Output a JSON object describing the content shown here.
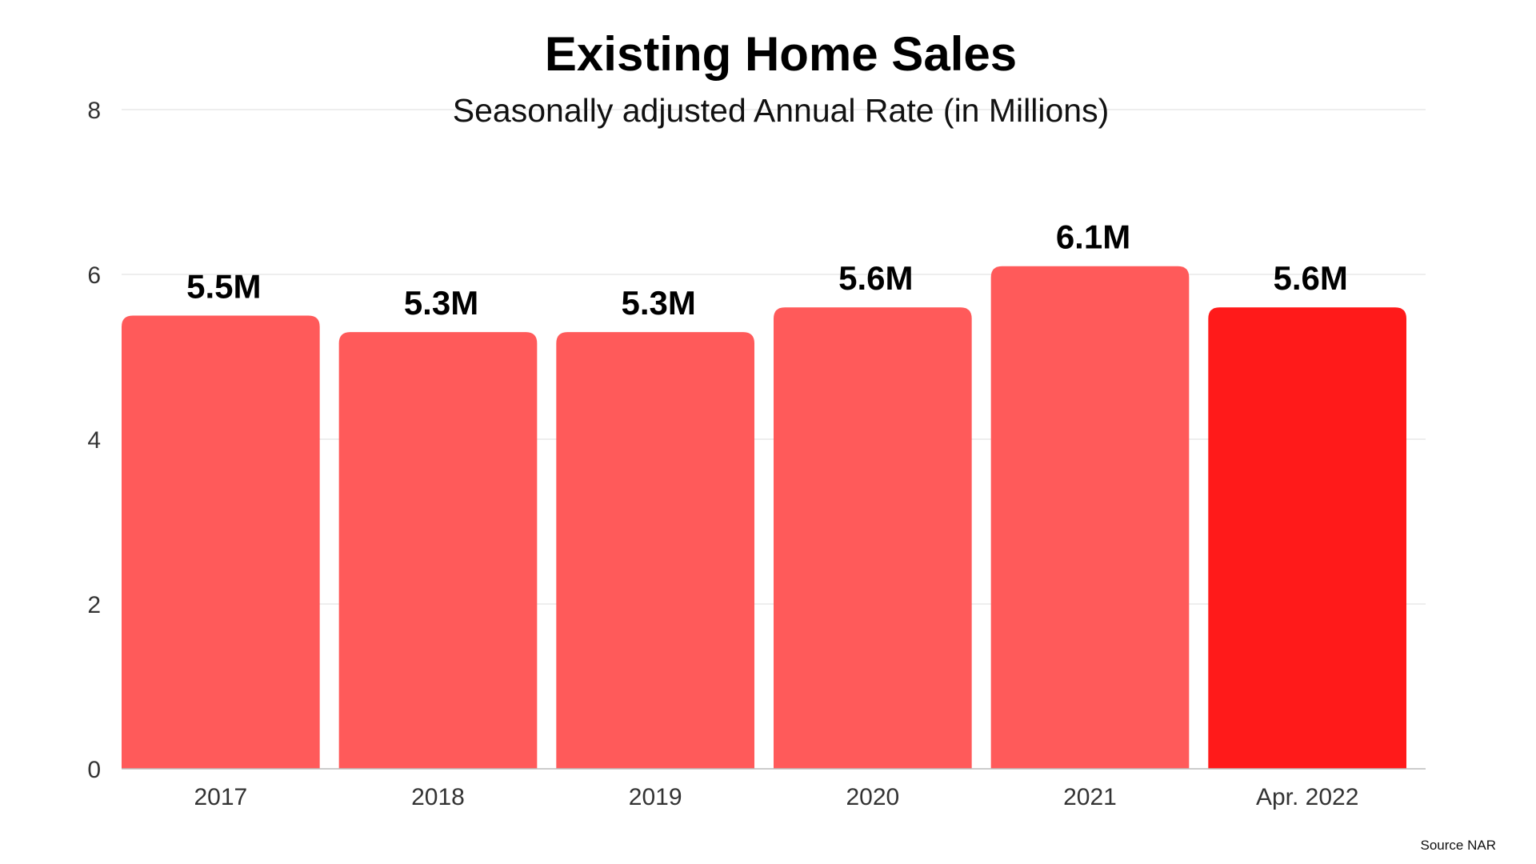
{
  "chart_data": {
    "type": "bar",
    "title": "Existing Home Sales",
    "subtitle": "Seasonally adjusted Annual Rate (in Millions)",
    "categories": [
      "2017",
      "2018",
      "2019",
      "2020",
      "2021",
      "Apr. 2022"
    ],
    "values": [
      5.5,
      5.3,
      5.3,
      5.6,
      6.1,
      5.6
    ],
    "data_labels": [
      "5.5M",
      "5.3M",
      "5.3M",
      "5.6M",
      "6.1M",
      "5.6M"
    ],
    "y_ticks": [
      0,
      2,
      4,
      6,
      8
    ],
    "ylim": [
      0,
      8
    ],
    "grid": true,
    "bar_colors": [
      "#ff5a5a",
      "#ff5a5a",
      "#ff5a5a",
      "#ff5a5a",
      "#ff5a5a",
      "#ff1a1a"
    ],
    "source": "Source NAR"
  }
}
